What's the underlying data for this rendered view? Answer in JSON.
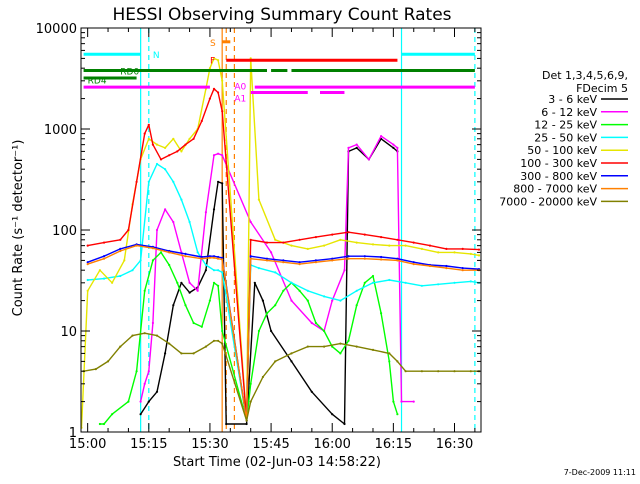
{
  "chart_data": {
    "type": "line",
    "title": "HESSI Observing Summary Count Rates",
    "xlabel": "Start Time (02-Jun-03 14:58:22)",
    "ylabel": "Count Rate (s⁻¹ detector⁻¹)",
    "x_unit": "UT (HH:MM)",
    "xlim": [
      "14:58:22",
      "16:36:30"
    ],
    "ylim": [
      1,
      10000
    ],
    "y_scale": "log",
    "grid": false,
    "legend_position": "right",
    "legend_title": [
      "Det 1,3,4,5,6,9,",
      "FDecim 5"
    ],
    "x_ticks": [
      "15:00",
      "15:15",
      "15:30",
      "15:45",
      "16:00",
      "16:15",
      "16:30"
    ],
    "y_ticks": [
      {
        "value": 1,
        "label": "1"
      },
      {
        "value": 10,
        "label": "10"
      },
      {
        "value": 100,
        "label": "100"
      },
      {
        "value": 1000,
        "label": "1000"
      },
      {
        "value": 10000,
        "label": "10000"
      }
    ],
    "series": [
      {
        "name": "3 - 6 keV",
        "color": "#000000",
        "x": [
          "15:13",
          "15:15",
          "15:17",
          "15:19",
          "15:21",
          "15:23",
          "15:25",
          "15:27",
          "15:29",
          "15:31",
          "15:32",
          "15:33",
          "15:34",
          "15:39",
          "15:41",
          "15:43",
          "15:45",
          "15:50",
          "15:55",
          "16:00",
          "16:03",
          "16:04",
          "16:06",
          "16:09",
          "16:12",
          "16:15",
          "16:16"
        ],
        "y": [
          1.5,
          2,
          2.5,
          6,
          18,
          30,
          24,
          27,
          40,
          160,
          300,
          290,
          1.2,
          1.2,
          30,
          20,
          10,
          5,
          2.5,
          1.5,
          1.2,
          600,
          650,
          500,
          800,
          650,
          600
        ]
      },
      {
        "name": "6 - 12 keV",
        "color": "#ff00ff",
        "x": [
          "15:13",
          "15:14",
          "15:15",
          "15:16",
          "15:17",
          "15:19",
          "15:21",
          "15:23",
          "15:25",
          "15:27",
          "15:29",
          "15:31",
          "15:32",
          "15:33",
          "15:40",
          "15:45",
          "15:50",
          "15:55",
          "15:58",
          "16:00",
          "16:03",
          "16:04",
          "16:06",
          "16:09",
          "16:12",
          "16:15",
          "16:16",
          "16:17",
          "16:20"
        ],
        "y": [
          2,
          3,
          4,
          12,
          100,
          160,
          120,
          60,
          30,
          25,
          150,
          550,
          570,
          550,
          120,
          60,
          20,
          12,
          10,
          20,
          40,
          650,
          700,
          500,
          850,
          700,
          650,
          2,
          2
        ]
      },
      {
        "name": "12 - 25 keV",
        "color": "#00ff00",
        "x": [
          "15:03",
          "15:04",
          "15:06",
          "15:10",
          "15:12",
          "15:14",
          "15:16",
          "15:18",
          "15:20",
          "15:22",
          "15:24",
          "15:26",
          "15:28",
          "15:30",
          "15:31",
          "15:32",
          "15:33",
          "15:39",
          "15:40",
          "15:42",
          "15:44",
          "15:46",
          "15:48",
          "15:50",
          "15:52",
          "15:54",
          "15:56",
          "15:58",
          "16:00",
          "16:02",
          "16:04",
          "16:06",
          "16:08",
          "16:10",
          "16:12",
          "16:14",
          "16:15",
          "16:16"
        ],
        "y": [
          1.2,
          1.2,
          1.5,
          2,
          4,
          25,
          50,
          60,
          45,
          30,
          18,
          12,
          11,
          20,
          30,
          28,
          10,
          1.3,
          3,
          10,
          15,
          18,
          25,
          30,
          25,
          20,
          12,
          10,
          7,
          6,
          8,
          18,
          30,
          35,
          15,
          5,
          2,
          1.5
        ]
      },
      {
        "name": "25 - 50 keV",
        "color": "#00ffff",
        "x": [
          "15:00",
          "15:04",
          "15:08",
          "15:11",
          "15:13",
          "15:15",
          "15:17",
          "15:19",
          "15:21",
          "15:23",
          "15:25",
          "15:27",
          "15:29",
          "15:31",
          "15:32",
          "15:33",
          "15:39",
          "15:40",
          "15:42",
          "15:46",
          "15:50",
          "15:54",
          "15:58",
          "16:02",
          "16:06",
          "16:10",
          "16:14",
          "16:18",
          "16:22",
          "16:26",
          "16:30",
          "16:34",
          "16:36"
        ],
        "y": [
          32,
          33,
          35,
          40,
          50,
          300,
          450,
          400,
          300,
          200,
          120,
          60,
          45,
          40,
          40,
          38,
          1.3,
          45,
          42,
          38,
          30,
          25,
          22,
          20,
          25,
          30,
          32,
          30,
          28,
          29,
          30,
          31,
          30
        ]
      },
      {
        "name": "50 - 100 keV",
        "color": "#e6e600",
        "x": [
          "14:58:30",
          "15:00",
          "15:03",
          "15:06",
          "15:09",
          "15:11",
          "15:13",
          "15:15",
          "15:17",
          "15:19",
          "15:21",
          "15:23",
          "15:25",
          "15:27",
          "15:29",
          "15:30",
          "15:31",
          "15:32",
          "15:33",
          "15:39",
          "15:40",
          "15:42",
          "15:46",
          "15:50",
          "15:54",
          "15:58",
          "16:02",
          "16:06",
          "16:10",
          "16:14",
          "16:18",
          "16:22",
          "16:26",
          "16:30",
          "16:34",
          "16:36"
        ],
        "y": [
          1.1,
          25,
          40,
          30,
          50,
          180,
          500,
          800,
          700,
          650,
          800,
          600,
          800,
          1000,
          2500,
          4000,
          5000,
          4800,
          3000,
          1.3,
          5000,
          200,
          80,
          70,
          65,
          70,
          80,
          75,
          72,
          70,
          70,
          65,
          60,
          60,
          58,
          56
        ]
      },
      {
        "name": "100 - 300 keV",
        "color": "#ff0000",
        "x": [
          "15:00",
          "15:04",
          "15:08",
          "15:10",
          "15:12",
          "15:14",
          "15:15",
          "15:16",
          "15:18",
          "15:20",
          "15:22",
          "15:24",
          "15:26",
          "15:28",
          "15:30",
          "15:31",
          "15:32",
          "15:33",
          "15:39",
          "15:40",
          "15:44",
          "15:48",
          "15:52",
          "15:56",
          "16:00",
          "16:04",
          "16:08",
          "16:12",
          "16:16",
          "16:20",
          "16:24",
          "16:28",
          "16:32",
          "16:36"
        ],
        "y": [
          70,
          75,
          80,
          100,
          300,
          900,
          1100,
          700,
          500,
          550,
          600,
          700,
          800,
          1200,
          2000,
          2500,
          2300,
          1500,
          1.3,
          80,
          75,
          75,
          80,
          85,
          90,
          95,
          90,
          85,
          80,
          75,
          70,
          65,
          65,
          64
        ]
      },
      {
        "name": "300 - 800 keV",
        "color": "#0000ff",
        "x": [
          "15:00",
          "15:04",
          "15:08",
          "15:12",
          "15:16",
          "15:20",
          "15:24",
          "15:28",
          "15:30",
          "15:31",
          "15:32",
          "15:33",
          "15:39",
          "15:40",
          "15:44",
          "15:48",
          "15:52",
          "15:56",
          "16:00",
          "16:04",
          "16:08",
          "16:12",
          "16:16",
          "16:20",
          "16:24",
          "16:28",
          "16:32",
          "16:36"
        ],
        "y": [
          48,
          55,
          65,
          72,
          68,
          62,
          58,
          54,
          55,
          55,
          54,
          53,
          1.3,
          55,
          52,
          50,
          48,
          50,
          52,
          55,
          55,
          54,
          52,
          48,
          45,
          44,
          42,
          41
        ]
      },
      {
        "name": "800 - 7000 keV",
        "color": "#ff8000",
        "x": [
          "15:00",
          "15:04",
          "15:08",
          "15:12",
          "15:16",
          "15:20",
          "15:24",
          "15:28",
          "15:30",
          "15:31",
          "15:32",
          "15:33",
          "15:39",
          "15:40",
          "15:44",
          "15:48",
          "15:52",
          "15:56",
          "16:00",
          "16:04",
          "16:08",
          "16:12",
          "16:16",
          "16:20",
          "16:24",
          "16:28",
          "16:32",
          "16:36"
        ],
        "y": [
          46,
          52,
          62,
          70,
          66,
          60,
          55,
          52,
          53,
          53,
          52,
          51,
          1.3,
          52,
          50,
          48,
          46,
          48,
          50,
          52,
          52,
          51,
          50,
          46,
          44,
          42,
          40,
          40
        ]
      },
      {
        "name": "7000 - 20000 keV",
        "color": "#808000",
        "x": [
          "14:59",
          "15:02",
          "15:05",
          "15:08",
          "15:11",
          "15:14",
          "15:17",
          "15:20",
          "15:23",
          "15:26",
          "15:29",
          "15:31",
          "15:32",
          "15:33",
          "15:39",
          "15:40",
          "15:43",
          "15:46",
          "15:50",
          "15:54",
          "15:58",
          "16:02",
          "16:06",
          "16:10",
          "16:14",
          "16:16",
          "16:18",
          "16:22",
          "16:26",
          "16:30",
          "16:34",
          "16:36"
        ],
        "y": [
          4,
          4.2,
          5,
          7,
          9,
          9.5,
          9,
          7.5,
          6,
          6,
          7,
          8,
          8,
          7.5,
          1.3,
          2,
          3.5,
          5,
          6,
          7,
          7,
          7.5,
          7,
          6.5,
          6,
          5,
          4,
          4,
          4,
          4,
          4,
          4
        ]
      }
    ],
    "annotations": [
      {
        "text": "N",
        "x": "15:16",
        "y": 5500,
        "color": "#00ffff"
      },
      {
        "text": "RD0",
        "x": "15:08",
        "y": 3800,
        "color": "#008000"
      },
      {
        "text": "RD4",
        "x": "15:00",
        "y": 3100,
        "color": "#008000"
      },
      {
        "text": "S",
        "x": "15:30",
        "y": 7300,
        "color": "#ff8000"
      },
      {
        "text": "F",
        "x": "15:30",
        "y": 4900,
        "color": "#ff0000"
      },
      {
        "text": "A0",
        "x": "15:36",
        "y": 2700,
        "color": "#ff00ff"
      },
      {
        "text": "A1",
        "x": "15:36",
        "y": 2050,
        "color": "#ff00ff"
      }
    ],
    "flag_bars": [
      {
        "name": "N",
        "color": "#00ffff",
        "y": 5500,
        "segments": [
          [
            "14:59",
            "15:13"
          ],
          [
            "16:17",
            "16:35"
          ]
        ]
      },
      {
        "name": "RD0",
        "color": "#008000",
        "y": 3800,
        "segments": [
          [
            "14:59",
            "15:44"
          ],
          [
            "15:45",
            "15:49"
          ],
          [
            "15:50",
            "16:35"
          ]
        ]
      },
      {
        "name": "RD4",
        "color": "#008000",
        "y": 3200,
        "segments": [
          [
            "14:59",
            "15:12"
          ]
        ]
      },
      {
        "name": "S",
        "color": "#ff8000",
        "y": 7300,
        "segments": [
          [
            "15:33",
            "15:35"
          ]
        ]
      },
      {
        "name": "F",
        "color": "#ff0000",
        "y": 4800,
        "segments": [
          [
            "15:34",
            "16:16"
          ]
        ]
      },
      {
        "name": "A0",
        "color": "#ff00ff",
        "y": 2600,
        "segments": [
          [
            "14:59",
            "15:30"
          ],
          [
            "15:41",
            "16:35"
          ]
        ]
      },
      {
        "name": "A1",
        "color": "#ff00ff",
        "y": 2300,
        "segments": [
          [
            "15:40",
            "15:54"
          ],
          [
            "15:57",
            "16:03"
          ]
        ]
      }
    ],
    "vertical_lines": [
      {
        "x": "15:15",
        "color": "#00ffff",
        "style": "dashed"
      },
      {
        "x": "15:13",
        "color": "#00ffff",
        "style": "solid"
      },
      {
        "x": "16:17",
        "color": "#00ffff",
        "style": "solid"
      },
      {
        "x": "16:35",
        "color": "#00ffff",
        "style": "dashed"
      },
      {
        "x": "15:33",
        "color": "#ff8000",
        "style": "solid"
      },
      {
        "x": "15:34",
        "color": "#ff8000",
        "style": "dashed"
      },
      {
        "x": "15:36",
        "color": "#ff8000",
        "style": "dashed"
      }
    ]
  },
  "footer": {
    "timestamp": "7-Dec-2009 11:11"
  }
}
